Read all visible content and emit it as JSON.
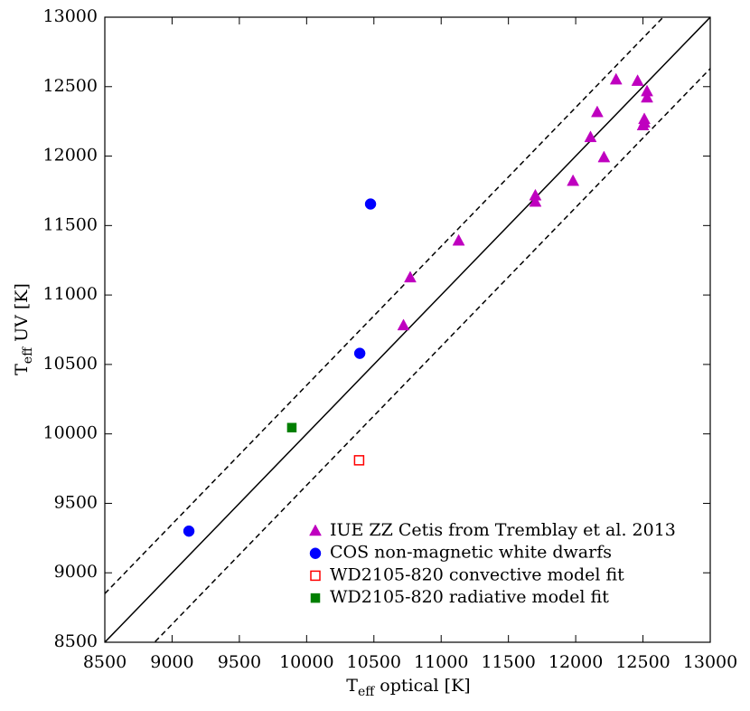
{
  "chart_data": {
    "type": "scatter",
    "xlabel": [
      "T",
      "eff",
      " optical [K]"
    ],
    "ylabel": [
      "T",
      "eff",
      " UV [K]"
    ],
    "xlim": [
      8500,
      13000
    ],
    "ylim": [
      8500,
      13000
    ],
    "xticks": [
      8500,
      9000,
      9500,
      10000,
      10500,
      11000,
      11500,
      12000,
      12500,
      13000
    ],
    "yticks": [
      8500,
      9000,
      9500,
      10000,
      10500,
      11000,
      11500,
      12000,
      12500,
      13000
    ],
    "grid": false,
    "legend": "lower right",
    "reference_lines": [
      {
        "offset": 0,
        "style": "solid"
      },
      {
        "offset": 350,
        "style": "dashed"
      },
      {
        "offset": -370,
        "style": "dashed"
      }
    ],
    "series": [
      {
        "name": "IUE ZZ Cetis from Tremblay et al. 2013",
        "marker": "triangle",
        "filled": true,
        "color": "#bf00bf",
        "x": [
          12300,
          12460,
          12530,
          12530,
          12160,
          12510,
          12510,
          12500,
          12110,
          12210,
          11980,
          11700,
          11700,
          11130,
          10770,
          10720
        ],
        "values": [
          12550,
          12540,
          12465,
          12420,
          12315,
          12265,
          12240,
          12220,
          12135,
          11990,
          11820,
          11715,
          11670,
          11390,
          11125,
          10780
        ]
      },
      {
        "name": "COS non-magnetic white dwarfs",
        "marker": "circle",
        "filled": true,
        "color": "#0000ff",
        "x": [
          10475,
          10395,
          9125
        ],
        "values": [
          11655,
          10580,
          9300
        ]
      },
      {
        "name": "WD2105-820 convective model fit",
        "marker": "square",
        "filled": false,
        "color": "#ff0000",
        "x": [
          10390
        ],
        "values": [
          9810
        ]
      },
      {
        "name": "WD2105-820 radiative model fit",
        "marker": "square",
        "filled": true,
        "color": "#007f00",
        "x": [
          9890
        ],
        "values": [
          10045
        ]
      }
    ]
  }
}
